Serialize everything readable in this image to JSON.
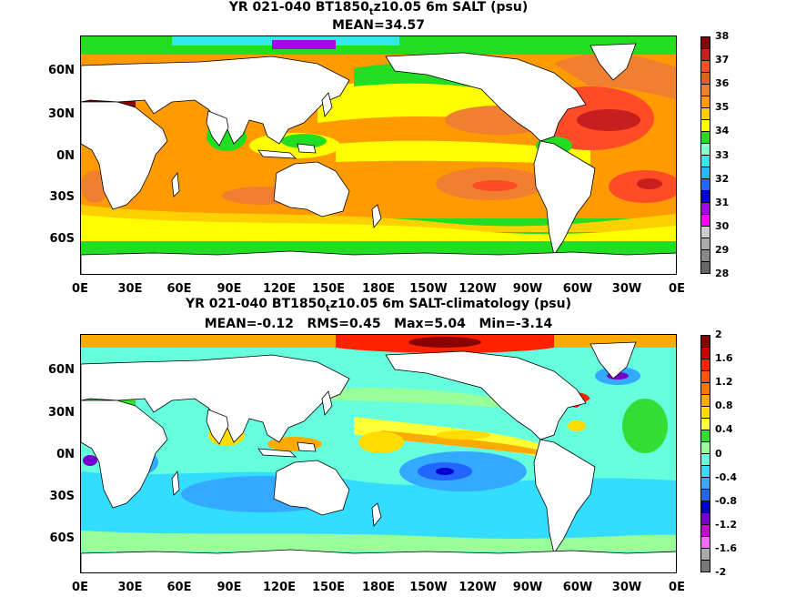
{
  "top": {
    "title_prefix": "YR 021-040 BT1850",
    "title_sub": "t",
    "title_suffix": "z10.05 6m SALT (psu)",
    "subtitle": "MEAN=34.57",
    "colorbar_labels": [
      "38",
      "37",
      "36",
      "35",
      "34",
      "33",
      "32",
      "31",
      "30",
      "29",
      "28"
    ]
  },
  "bottom": {
    "title_prefix": "YR 021-040 BT1850",
    "title_sub": "t",
    "title_suffix": "z10.05 6m SALT-climatology (psu)",
    "subtitle": "MEAN=-0.12   RMS=0.45   Max=5.04   Min=-3.14",
    "colorbar_labels": [
      "2",
      "1.6",
      "1.2",
      "0.8",
      "0.4",
      "0",
      "-0.4",
      "-0.8",
      "-1.2",
      "-1.6",
      "-2"
    ]
  },
  "axes": {
    "lat_labels": [
      "60N",
      "30N",
      "0N",
      "30S",
      "60S"
    ],
    "lon_labels": [
      "0E",
      "30E",
      "60E",
      "90E",
      "120E",
      "150E",
      "180E",
      "150W",
      "120W",
      "90W",
      "60W",
      "30W",
      "0E"
    ]
  },
  "colors": {
    "salt_scale": [
      "#8b0000",
      "#c81e1e",
      "#ff4b26",
      "#f08030",
      "#ff9a00",
      "#ffd000",
      "#ffff00",
      "#22dd22",
      "#88ffcc",
      "#33e8e8",
      "#22bbff",
      "#2266ff",
      "#0000dd",
      "#aa00ee",
      "#ff00ff",
      "#aaaaaa",
      "#777777"
    ],
    "diff_scale": [
      "#8b0000",
      "#cc0000",
      "#ff2200",
      "#ff7700",
      "#ffaa00",
      "#ffdd00",
      "#ffff33",
      "#33dd33",
      "#99ff99",
      "#66ffdd",
      "#33ddff",
      "#33aaff",
      "#2266ff",
      "#0000cc",
      "#7700cc",
      "#cc00cc",
      "#ff66ff",
      "#888888"
    ],
    "land": "#ffffff"
  }
}
